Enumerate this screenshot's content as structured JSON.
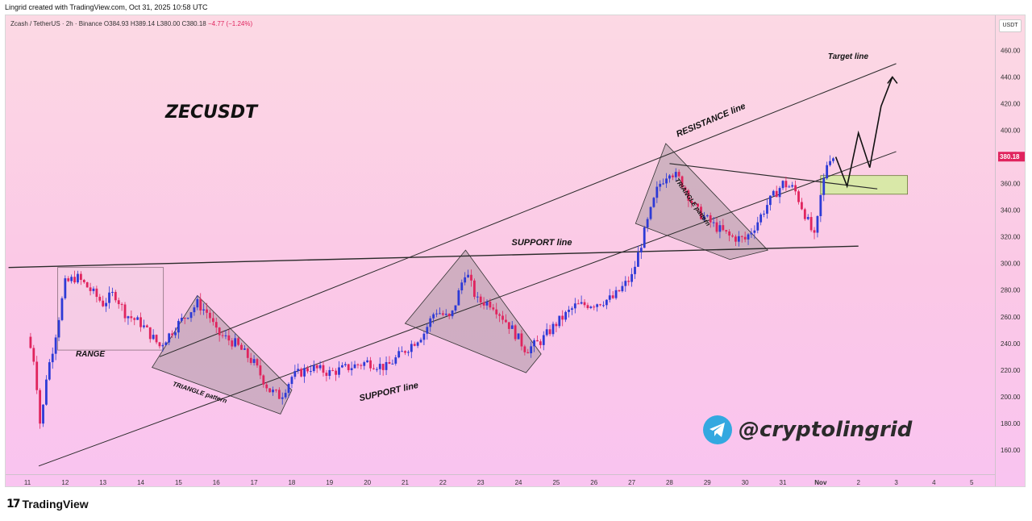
{
  "caption": "Lingrid created with TradingView.com, Oct 31, 2025 10:58 UTC",
  "header": {
    "symbol_line": "Zcash / TetherUS · 2h · Binance",
    "open": "O384.93",
    "high": "H389.14",
    "low": "L380.00",
    "close": "C380.18",
    "change": "−4.77 (−1.24%)"
  },
  "currency": "USDT",
  "title": "ZECUSDT",
  "last_price": "380.18",
  "colors": {
    "up": "#2d3ad6",
    "down": "#e0245e",
    "last_price_bg": "#e0245e",
    "pattern_fill": "#9c8f95",
    "target_zone": "#d9e8a8"
  },
  "annotations": {
    "range": "RANGE",
    "triangle_1": "TRIANGLE pattern",
    "triangle_2": "TRIANGLE pattern",
    "support_lower": "SUPPORT line",
    "support_upper": "SUPPORT line",
    "resistance": "RESISTANCE line",
    "target": "Target line"
  },
  "watermark": "@cryptolingrid",
  "footer": {
    "logo_mark": "17",
    "logo_text": "TradingView"
  },
  "chart_data": {
    "type": "candlestick",
    "timeframe": "2h",
    "y_ticks": [
      160,
      180,
      200,
      220,
      240,
      260,
      280,
      300,
      320,
      340,
      360,
      380,
      400,
      420,
      440,
      460
    ],
    "ylim": [
      140,
      470
    ],
    "x_ticks": [
      "11",
      "12",
      "13",
      "14",
      "15",
      "16",
      "17",
      "18",
      "19",
      "20",
      "21",
      "22",
      "23",
      "24",
      "25",
      "26",
      "27",
      "28",
      "29",
      "30",
      "31",
      "Nov",
      "2",
      "3",
      "4",
      "5"
    ],
    "price_path": [
      [
        0,
        245
      ],
      [
        0.2,
        225
      ],
      [
        0.35,
        175
      ],
      [
        0.5,
        215
      ],
      [
        0.7,
        240
      ],
      [
        1.0,
        285
      ],
      [
        1.3,
        290
      ],
      [
        1.6,
        282
      ],
      [
        2.0,
        270
      ],
      [
        2.3,
        278
      ],
      [
        2.6,
        262
      ],
      [
        3.0,
        255
      ],
      [
        3.3,
        245
      ],
      [
        3.5,
        238
      ],
      [
        4.0,
        255
      ],
      [
        4.5,
        270
      ],
      [
        4.8,
        262
      ],
      [
        5.0,
        248
      ],
      [
        5.5,
        240
      ],
      [
        6.0,
        225
      ],
      [
        6.4,
        205
      ],
      [
        6.7,
        200
      ],
      [
        7.0,
        215
      ],
      [
        7.5,
        222
      ],
      [
        8.0,
        218
      ],
      [
        9.0,
        226
      ],
      [
        9.5,
        222
      ],
      [
        10.0,
        235
      ],
      [
        10.5,
        248
      ],
      [
        10.8,
        265
      ],
      [
        11.2,
        258
      ],
      [
        11.6,
        295
      ],
      [
        11.9,
        272
      ],
      [
        12.3,
        270
      ],
      [
        12.8,
        252
      ],
      [
        13.2,
        235
      ],
      [
        13.6,
        242
      ],
      [
        14.0,
        255
      ],
      [
        14.5,
        268
      ],
      [
        15.0,
        270
      ],
      [
        15.5,
        274
      ],
      [
        16.0,
        290
      ],
      [
        16.3,
        320
      ],
      [
        16.7,
        358
      ],
      [
        17.0,
        370
      ],
      [
        17.3,
        362
      ],
      [
        17.7,
        340
      ],
      [
        18.2,
        328
      ],
      [
        18.6,
        320
      ],
      [
        19.0,
        318
      ],
      [
        19.3,
        330
      ],
      [
        19.6,
        345
      ],
      [
        20.0,
        360
      ],
      [
        20.3,
        356
      ],
      [
        20.6,
        336
      ],
      [
        20.85,
        318
      ],
      [
        21.0,
        350
      ],
      [
        21.2,
        380
      ],
      [
        21.4,
        380.18
      ]
    ],
    "price_path_x_unit": "days since Oct 11",
    "projection": [
      [
        21.4,
        380
      ],
      [
        21.7,
        358
      ],
      [
        22.0,
        398
      ],
      [
        22.3,
        372
      ],
      [
        22.6,
        418
      ],
      [
        22.9,
        440
      ]
    ],
    "target_zone": {
      "y_range": [
        352,
        366
      ],
      "x_range": [
        21.0,
        23.3
      ]
    },
    "range_box": {
      "y_range": [
        235,
        297
      ],
      "x_range": [
        0.8,
        3.6
      ]
    },
    "lines": {
      "support_horizontal": [
        [
          -0.5,
          297
        ],
        [
          22.0,
          313
        ]
      ],
      "support_rising": [
        [
          0.3,
          148
        ],
        [
          23.0,
          384
        ]
      ],
      "resistance": [
        [
          3.5,
          230
        ],
        [
          23.0,
          450
        ]
      ],
      "triangle_2_upper": [
        [
          17.0,
          375
        ],
        [
          22.5,
          356
        ]
      ]
    }
  }
}
